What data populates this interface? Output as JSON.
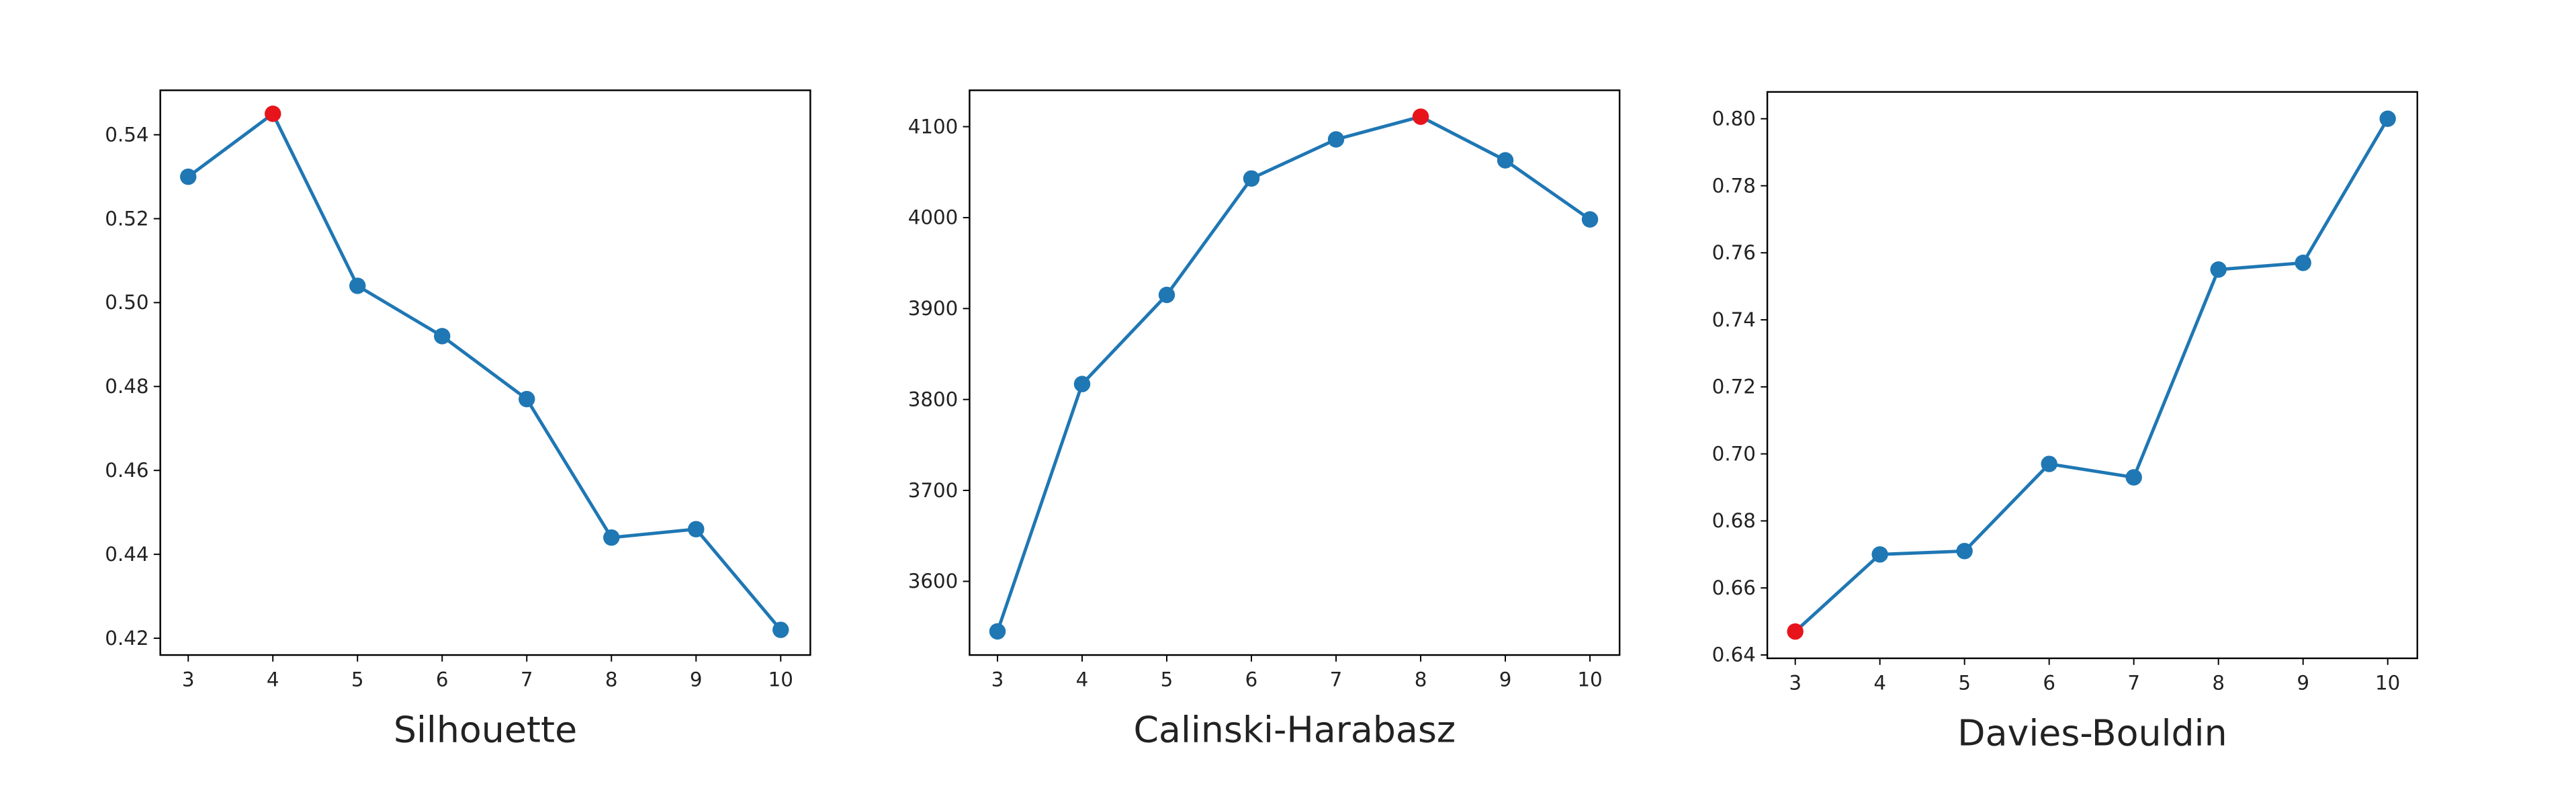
{
  "chart_data": [
    {
      "type": "line",
      "xlabel": "Silhouette",
      "x": [
        3,
        4,
        5,
        6,
        7,
        8,
        9,
        10
      ],
      "values": [
        0.53,
        0.545,
        0.504,
        0.492,
        0.477,
        0.444,
        0.446,
        0.422
      ],
      "color": "#1f77b4",
      "highlight_index": 1,
      "highlight_color": "#e8141c",
      "xlim": [
        2.67,
        10.35
      ],
      "xticks": [
        3,
        4,
        5,
        6,
        7,
        8,
        9,
        10
      ],
      "ylim": [
        0.416,
        0.5506
      ],
      "yticks": [
        0.42,
        0.44,
        0.46,
        0.48,
        {
          "value": 0.5,
          "label": "0.50"
        },
        0.52,
        0.54
      ]
    },
    {
      "type": "line",
      "xlabel": "Calinski-Harabasz",
      "x": [
        3,
        4,
        5,
        6,
        7,
        8,
        9,
        10
      ],
      "values": [
        3545,
        3817,
        3915,
        4043,
        4086,
        4111,
        4063,
        3998
      ],
      "color": "#1f77b4",
      "highlight_index": 5,
      "highlight_color": "#e8141c",
      "xlim": [
        2.67,
        10.35
      ],
      "xticks": [
        3,
        4,
        5,
        6,
        7,
        8,
        9,
        10
      ],
      "ylim": [
        3519,
        4140
      ],
      "yticks": [
        3600,
        3700,
        3800,
        3900,
        4000,
        4100
      ]
    },
    {
      "type": "line",
      "xlabel": "Davies-Bouldin",
      "x": [
        3,
        4,
        5,
        6,
        7,
        8,
        9,
        10
      ],
      "values": [
        0.647,
        0.67,
        0.671,
        0.697,
        0.693,
        0.755,
        0.757,
        0.8
      ],
      "color": "#1f77b4",
      "highlight_index": 0,
      "highlight_color": "#e8141c",
      "xlim": [
        2.67,
        10.35
      ],
      "xticks": [
        3,
        4,
        5,
        6,
        7,
        8,
        9,
        10
      ],
      "ylim": [
        0.639,
        0.808
      ],
      "yticks": [
        {
          "value": 0.64,
          "label": "0.64"
        },
        0.66,
        0.68,
        {
          "value": 0.7,
          "label": "0.70"
        },
        0.72,
        0.74,
        0.76,
        0.78,
        {
          "value": 0.8,
          "label": "0.80"
        }
      ]
    }
  ]
}
